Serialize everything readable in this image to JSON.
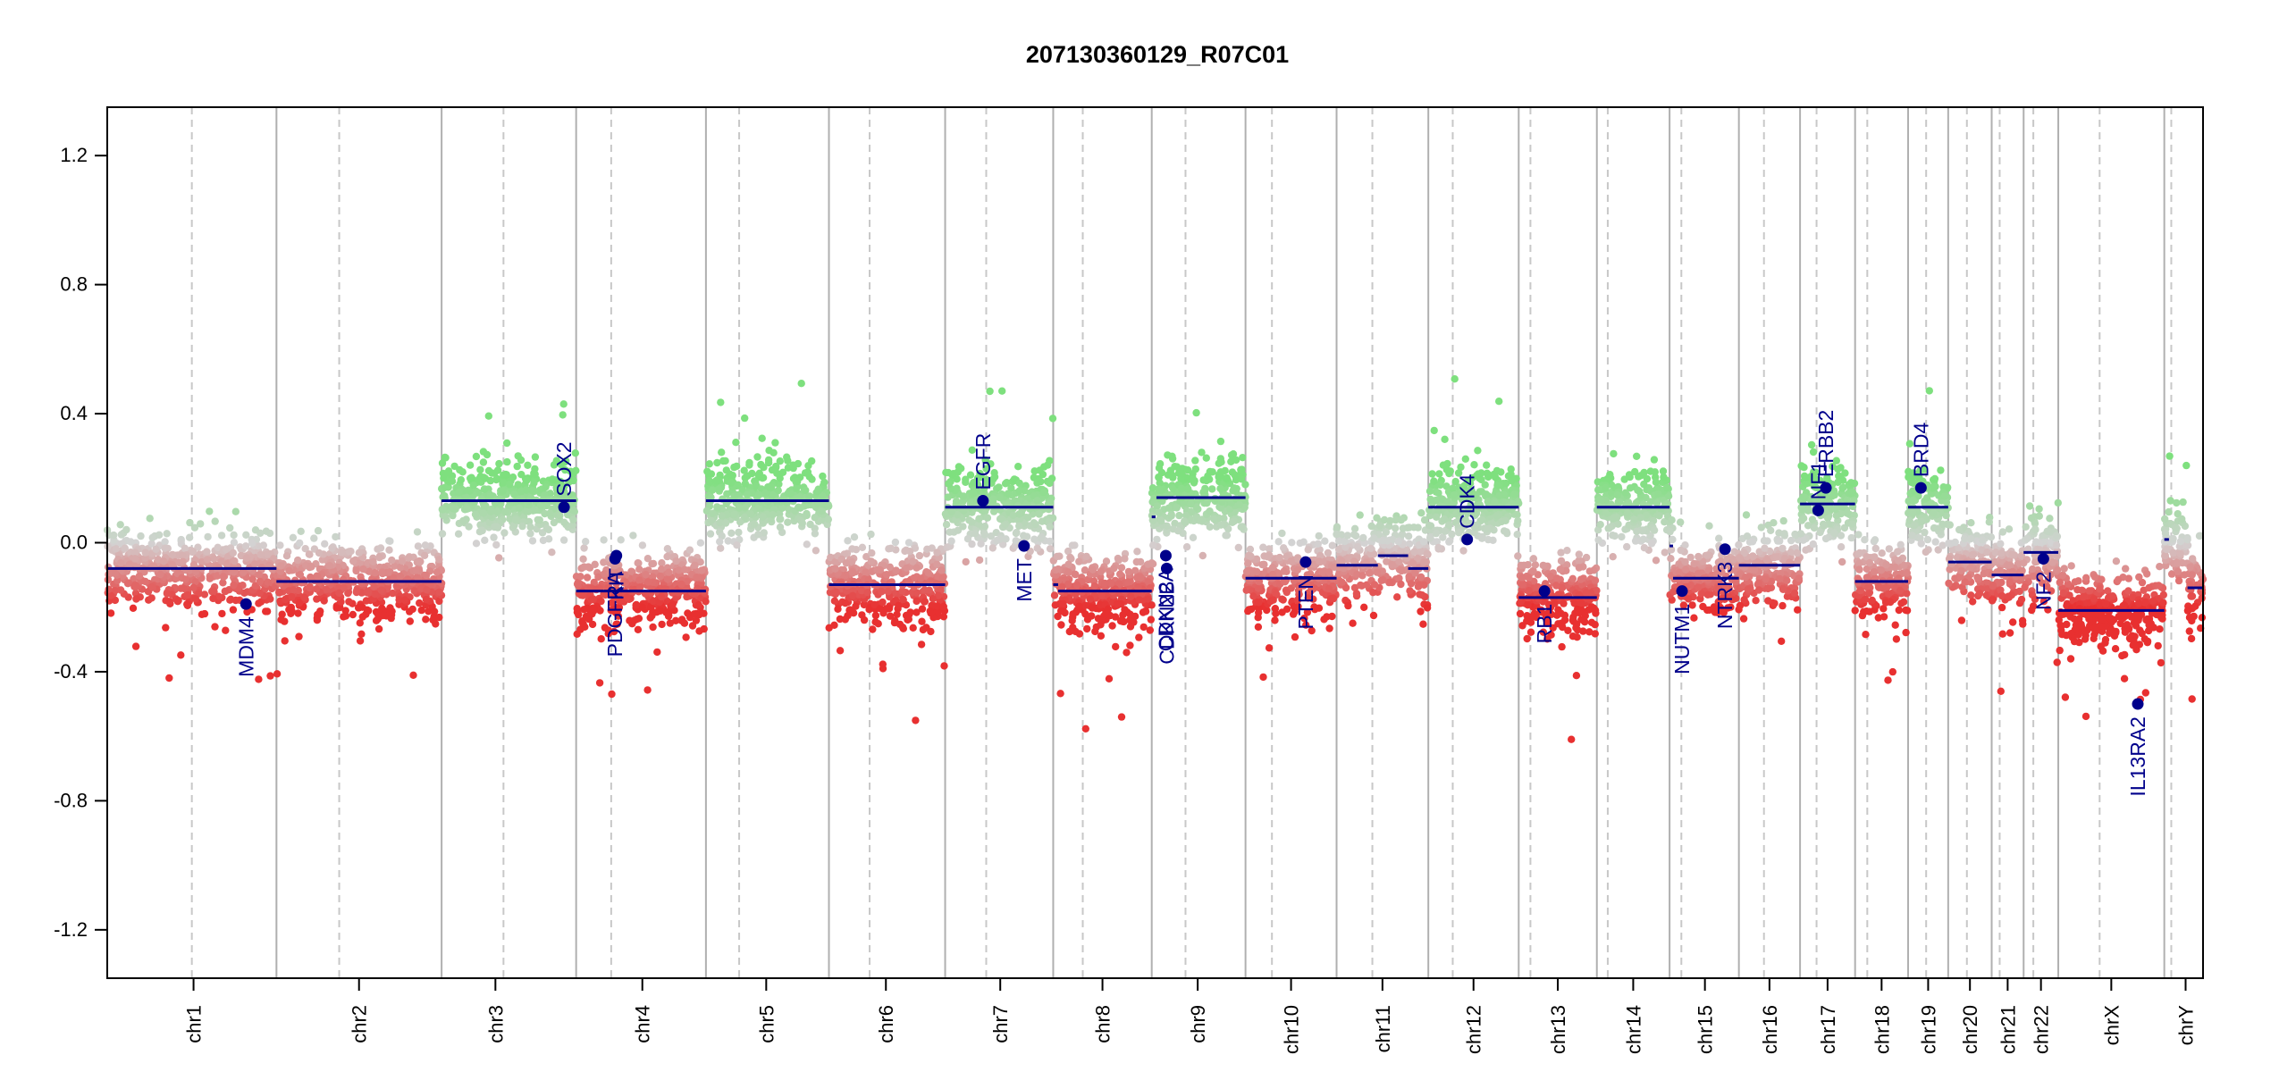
{
  "chart_data": {
    "type": "scatter",
    "title": "207130360129_R07C01",
    "xlabel": "",
    "ylabel": "",
    "ylim": [
      -1.35,
      1.35
    ],
    "y_ticks": [
      -1.2,
      -0.8,
      -0.4,
      0.0,
      0.4,
      0.8,
      1.2
    ],
    "y_tick_labels": [
      "-1.2",
      "-0.8",
      "-0.4",
      "0.0",
      "0.4",
      "0.8",
      "1.2"
    ],
    "grid": false,
    "colors": {
      "gain": "#7ee07e",
      "neutral": "#d3d3d3",
      "loss": "#e83030",
      "segment": "#00008b",
      "gene": "#00008b",
      "chrom_boundary": "#b0b0b0",
      "centromere": "#c8c8c8"
    },
    "chromosomes": [
      {
        "name": "chr1",
        "start": 0,
        "end": 249,
        "centromere": 0.5,
        "label_x": 0.51
      },
      {
        "name": "chr2",
        "start": 249,
        "end": 492,
        "centromere": 0.38,
        "label_x": 0.5
      },
      {
        "name": "chr3",
        "start": 492,
        "end": 690,
        "centromere": 0.46,
        "label_x": 0.4
      },
      {
        "name": "chr4",
        "start": 690,
        "end": 881,
        "centromere": 0.27,
        "label_x": 0.51
      },
      {
        "name": "chr5",
        "start": 881,
        "end": 1062,
        "centromere": 0.27,
        "label_x": 0.49
      },
      {
        "name": "chr6",
        "start": 1062,
        "end": 1233,
        "centromere": 0.35,
        "label_x": 0.49
      },
      {
        "name": "chr7",
        "start": 1233,
        "end": 1392,
        "centromere": 0.38,
        "label_x": 0.51
      },
      {
        "name": "chr8",
        "start": 1392,
        "end": 1537,
        "centromere": 0.3,
        "label_x": 0.5
      },
      {
        "name": "chr9",
        "start": 1537,
        "end": 1675,
        "centromere": 0.36,
        "label_x": 0.49
      },
      {
        "name": "chr10",
        "start": 1675,
        "end": 1809,
        "centromere": 0.29,
        "label_x": 0.5
      },
      {
        "name": "chr11",
        "start": 1809,
        "end": 1944,
        "centromere": 0.39,
        "label_x": 0.5
      },
      {
        "name": "chr12",
        "start": 1944,
        "end": 2077,
        "centromere": 0.27,
        "label_x": 0.5
      },
      {
        "name": "chr13",
        "start": 2077,
        "end": 2192,
        "centromere": 0.15,
        "label_x": 0.5
      },
      {
        "name": "chr14",
        "start": 2192,
        "end": 2299,
        "centromere": 0.15,
        "label_x": 0.5
      },
      {
        "name": "chr15",
        "start": 2299,
        "end": 2401,
        "centromere": 0.17,
        "label_x": 0.51
      },
      {
        "name": "chr16",
        "start": 2401,
        "end": 2491,
        "centromere": 0.41,
        "label_x": 0.5
      },
      {
        "name": "chr17",
        "start": 2491,
        "end": 2572,
        "centromere": 0.3,
        "label_x": 0.5
      },
      {
        "name": "chr18",
        "start": 2572,
        "end": 2650,
        "centromere": 0.23,
        "label_x": 0.5
      },
      {
        "name": "chr19",
        "start": 2650,
        "end": 2709,
        "centromere": 0.45,
        "label_x": 0.5
      },
      {
        "name": "chr20",
        "start": 2709,
        "end": 2773,
        "centromere": 0.43,
        "label_x": 0.5
      },
      {
        "name": "chr21",
        "start": 2773,
        "end": 2820,
        "centromere": 0.25,
        "label_x": 0.5
      },
      {
        "name": "chr22",
        "start": 2820,
        "end": 2871,
        "centromere": 0.28,
        "label_x": 0.5
      },
      {
        "name": "chrX",
        "start": 2871,
        "end": 3027,
        "centromere": 0.39,
        "label_x": 0.5
      },
      {
        "name": "chrY",
        "start": 3027,
        "end": 3084,
        "centromere": 0.18,
        "label_x": 0.55
      }
    ],
    "segments": [
      {
        "chr": "chr1",
        "from": 0.0,
        "to": 1.0,
        "value": -0.08
      },
      {
        "chr": "chr2",
        "from": 0.0,
        "to": 1.0,
        "value": -0.12
      },
      {
        "chr": "chr3",
        "from": 0.0,
        "to": 1.0,
        "value": 0.13
      },
      {
        "chr": "chr4",
        "from": 0.0,
        "to": 1.0,
        "value": -0.15
      },
      {
        "chr": "chr5",
        "from": 0.0,
        "to": 1.0,
        "value": 0.13
      },
      {
        "chr": "chr6",
        "from": 0.0,
        "to": 1.0,
        "value": -0.13
      },
      {
        "chr": "chr7",
        "from": 0.0,
        "to": 1.0,
        "value": 0.11
      },
      {
        "chr": "chr8",
        "from": 0.0,
        "to": 0.05,
        "value": -0.13
      },
      {
        "chr": "chr8",
        "from": 0.05,
        "to": 1.0,
        "value": -0.15
      },
      {
        "chr": "chr9",
        "from": 0.0,
        "to": 0.04,
        "value": 0.08
      },
      {
        "chr": "chr9",
        "from": 0.05,
        "to": 1.0,
        "value": 0.14
      },
      {
        "chr": "chr10",
        "from": 0.0,
        "to": 1.0,
        "value": -0.11
      },
      {
        "chr": "chr11",
        "from": 0.0,
        "to": 0.45,
        "value": -0.07
      },
      {
        "chr": "chr11",
        "from": 0.45,
        "to": 0.78,
        "value": -0.04
      },
      {
        "chr": "chr11",
        "from": 0.78,
        "to": 1.0,
        "value": -0.08
      },
      {
        "chr": "chr12",
        "from": 0.0,
        "to": 1.0,
        "value": 0.11
      },
      {
        "chr": "chr13",
        "from": 0.0,
        "to": 1.0,
        "value": -0.17
      },
      {
        "chr": "chr14",
        "from": 0.0,
        "to": 1.0,
        "value": 0.11
      },
      {
        "chr": "chr15",
        "from": 0.0,
        "to": 0.05,
        "value": -0.01
      },
      {
        "chr": "chr15",
        "from": 0.05,
        "to": 1.0,
        "value": -0.11
      },
      {
        "chr": "chr16",
        "from": 0.0,
        "to": 1.0,
        "value": -0.07
      },
      {
        "chr": "chr17",
        "from": 0.0,
        "to": 1.0,
        "value": 0.12
      },
      {
        "chr": "chr18",
        "from": 0.0,
        "to": 1.0,
        "value": -0.12
      },
      {
        "chr": "chr19",
        "from": 0.0,
        "to": 1.0,
        "value": 0.11
      },
      {
        "chr": "chr20",
        "from": 0.0,
        "to": 1.0,
        "value": -0.06
      },
      {
        "chr": "chr21",
        "from": 0.0,
        "to": 1.0,
        "value": -0.1
      },
      {
        "chr": "chr22",
        "from": 0.0,
        "to": 1.0,
        "value": -0.03
      },
      {
        "chr": "chrX",
        "from": 0.0,
        "to": 1.0,
        "value": -0.21
      },
      {
        "chr": "chrY",
        "from": 0.0,
        "to": 0.12,
        "value": 0.01
      },
      {
        "chr": "chrY",
        "from": 0.6,
        "to": 1.0,
        "value": -0.14
      }
    ],
    "genes": [
      {
        "name": "MDM4",
        "chr": "chr1",
        "pos": 0.82,
        "value": -0.19
      },
      {
        "name": "SOX2",
        "chr": "chr3",
        "pos": 0.91,
        "value": 0.11
      },
      {
        "name": "PDGFRA",
        "chr": "chr4",
        "pos": 0.3,
        "value": -0.05
      },
      {
        "name": "KIT",
        "chr": "chr4",
        "pos": 0.31,
        "value": -0.04
      },
      {
        "name": "EGFR",
        "chr": "chr7",
        "pos": 0.35,
        "value": 0.13
      },
      {
        "name": "MET",
        "chr": "chr7",
        "pos": 0.73,
        "value": -0.01
      },
      {
        "name": "CDKN2A",
        "chr": "chr9",
        "pos": 0.15,
        "value": -0.04
      },
      {
        "name": "CDKN2B",
        "chr": "chr9",
        "pos": 0.16,
        "value": -0.08
      },
      {
        "name": "PTEN",
        "chr": "chr10",
        "pos": 0.66,
        "value": -0.06
      },
      {
        "name": "CDK4",
        "chr": "chr12",
        "pos": 0.43,
        "value": 0.01
      },
      {
        "name": "RB1",
        "chr": "chr13",
        "pos": 0.33,
        "value": -0.15
      },
      {
        "name": "NUTM1",
        "chr": "chr15",
        "pos": 0.18,
        "value": -0.15
      },
      {
        "name": "NTRK3",
        "chr": "chr15",
        "pos": 0.8,
        "value": -0.02
      },
      {
        "name": "NF1",
        "chr": "chr17",
        "pos": 0.33,
        "value": 0.1
      },
      {
        "name": "ERBB2",
        "chr": "chr17",
        "pos": 0.47,
        "value": 0.17
      },
      {
        "name": "BRD4",
        "chr": "chr19",
        "pos": 0.32,
        "value": 0.17
      },
      {
        "name": "NF2",
        "chr": "chr22",
        "pos": 0.57,
        "value": -0.05
      },
      {
        "name": "IL13RA2",
        "chr": "chrX",
        "pos": 0.75,
        "value": -0.5
      }
    ]
  }
}
